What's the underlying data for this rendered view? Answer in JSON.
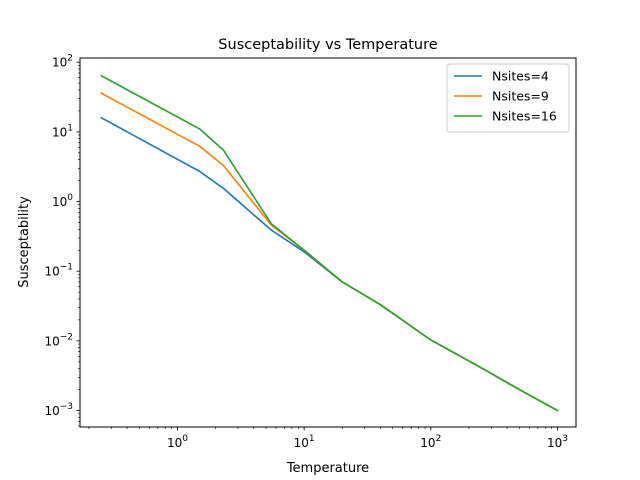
{
  "chart_data": {
    "type": "line",
    "title": "Susceptability vs Temperature",
    "xlabel": "Temperature",
    "ylabel": "Susceptability",
    "xscale": "log",
    "yscale": "log",
    "xlim": [
      0.17,
      1400
    ],
    "ylim": [
      0.00058,
      115
    ],
    "x_ticks": [
      {
        "value": 1,
        "label": "10^0"
      },
      {
        "value": 10,
        "label": "10^1"
      },
      {
        "value": 100,
        "label": "10^2"
      },
      {
        "value": 1000,
        "label": "10^3"
      }
    ],
    "y_ticks": [
      {
        "value": 0.001,
        "label": "10^-3"
      },
      {
        "value": 0.01,
        "label": "10^-2"
      },
      {
        "value": 0.1,
        "label": "10^-1"
      },
      {
        "value": 1,
        "label": "10^0"
      },
      {
        "value": 10,
        "label": "10^1"
      },
      {
        "value": 100,
        "label": "10^2"
      }
    ],
    "grid": false,
    "legend_position": "top-right",
    "series": [
      {
        "name": "Nsites=4",
        "color": "#1f77b4",
        "x": [
          0.25,
          1.5,
          2.3,
          5.5,
          10,
          20,
          40,
          100,
          250,
          500,
          1000
        ],
        "y": [
          16,
          2.7,
          1.55,
          0.39,
          0.19,
          0.07,
          0.033,
          0.0103,
          0.0041,
          0.002,
          0.001
        ]
      },
      {
        "name": "Nsites=9",
        "color": "#ff7f0e",
        "x": [
          0.25,
          1.5,
          2.3,
          5.5,
          10,
          20,
          40,
          100,
          250,
          500,
          1000
        ],
        "y": [
          36,
          6.2,
          3.3,
          0.46,
          0.2,
          0.07,
          0.033,
          0.0103,
          0.0041,
          0.002,
          0.001
        ]
      },
      {
        "name": "Nsites=16",
        "color": "#2ca02c",
        "x": [
          0.25,
          1.5,
          2.3,
          5.5,
          10,
          20,
          40,
          100,
          250,
          500,
          1000
        ],
        "y": [
          64,
          11,
          5.5,
          0.48,
          0.2,
          0.07,
          0.033,
          0.0103,
          0.0041,
          0.002,
          0.001
        ]
      }
    ]
  }
}
